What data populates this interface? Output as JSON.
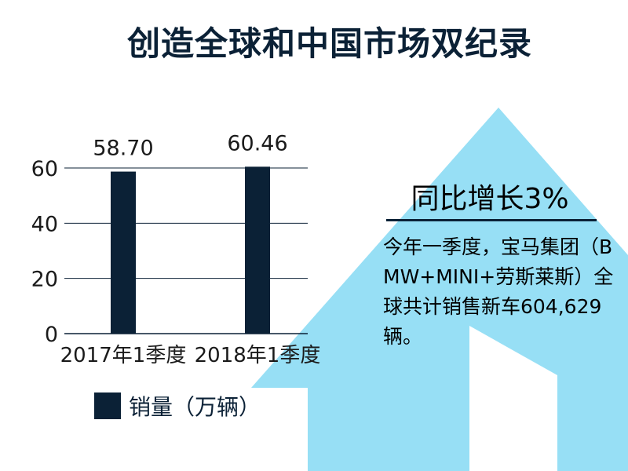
{
  "title": "创造全球和中国市场双纪录",
  "headline": "同比增长3%",
  "body": "今年一季度，宝马集团（BMW+MINI+劳斯莱斯）全球共计销售新车604,629辆。",
  "colors": {
    "bar": "#0b2136",
    "arrow": "#97dff5",
    "grid": "#0b2136"
  },
  "chart_data": {
    "type": "bar",
    "categories": [
      "2017年1季度",
      "2018年1季度"
    ],
    "series": [
      {
        "name": "销量（万辆）",
        "values": [
          58.7,
          60.46
        ]
      }
    ],
    "value_labels": [
      "58.70",
      "60.46"
    ],
    "yticks": [
      0,
      20,
      40,
      60
    ],
    "ylim": [
      0,
      70
    ],
    "grid": true,
    "legend": "bottom-left"
  }
}
